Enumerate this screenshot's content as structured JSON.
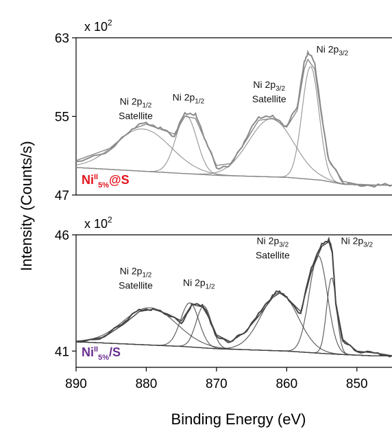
{
  "chart_data": [
    {
      "type": "line",
      "panel": "top",
      "ylabel": "Intensity (Counts/s)",
      "xlabel": "Binding Energy (eV)",
      "multiplier": "x 10",
      "multiplier_exp": "2",
      "xlim": [
        890,
        845
      ],
      "ylim": [
        47,
        63
      ],
      "yticks": [
        47,
        55,
        63
      ],
      "xticks": [],
      "sample_label": {
        "main": "Ni",
        "sup": "II",
        "sub": "5%",
        "tail": "@S",
        "color": "#e2141e"
      },
      "line_color": "#8a8a8a",
      "annotations": [
        {
          "lines": [
            "Ni 2p1/2",
            "Satellite"
          ],
          "x": 881.5,
          "y": 56.2
        },
        {
          "lines": [
            "Ni 2p1/2"
          ],
          "x": 874.0,
          "y": 56.6
        },
        {
          "lines": [
            "Ni 2p3/2",
            "Satellite"
          ],
          "x": 862.5,
          "y": 57.9
        },
        {
          "lines": [
            "Ni 2p3/2"
          ],
          "x": 853.5,
          "y": 61.5
        }
      ],
      "series": [
        {
          "role": "measured",
          "x": [
            890,
            885,
            882,
            880,
            878,
            876,
            874.5,
            873,
            871.5,
            870,
            868,
            866,
            864,
            862,
            860,
            858.5,
            857.5,
            857,
            856,
            855,
            854,
            852,
            850,
            847,
            845
          ],
          "y": [
            50.4,
            51.6,
            53.8,
            54.4,
            53.8,
            53.0,
            55.4,
            55.2,
            52.5,
            49.8,
            50.0,
            52.5,
            55.0,
            55.0,
            54.0,
            56.0,
            60.5,
            61.5,
            60.5,
            55.0,
            50.5,
            48.3,
            48.0,
            48.0,
            48.0
          ]
        },
        {
          "role": "fit",
          "x": [
            890,
            885,
            882,
            880,
            878,
            876,
            874.5,
            873,
            871.5,
            870,
            868,
            866,
            864,
            862,
            860,
            858.5,
            857.5,
            857,
            856,
            855,
            854,
            852,
            850,
            847,
            845
          ],
          "y": [
            50.5,
            51.8,
            53.7,
            54.2,
            53.7,
            53.2,
            55.0,
            54.8,
            52.4,
            50.0,
            50.2,
            52.3,
            54.6,
            54.8,
            53.9,
            55.6,
            59.8,
            60.8,
            59.8,
            54.8,
            50.6,
            48.4,
            48.1,
            48.0,
            48.0
          ]
        },
        {
          "role": "background",
          "x": [
            890,
            875,
            870,
            860,
            855,
            852,
            848,
            845
          ],
          "y": [
            49.8,
            49.2,
            49.0,
            48.8,
            48.5,
            48.1,
            48.0,
            48.0
          ]
        },
        {
          "role": "component",
          "name": "Ni 2p1/2 satellite",
          "center": 880.5,
          "height": 4.3,
          "width": 4.0
        },
        {
          "role": "component",
          "name": "Ni 2p1/2",
          "center": 874.3,
          "height": 5.9,
          "width": 1.5
        },
        {
          "role": "component",
          "name": "Ni 2p3/2 satellite",
          "center": 862.2,
          "height": 5.9,
          "width": 3.2
        },
        {
          "role": "component",
          "name": "Ni 2p3/2",
          "center": 856.6,
          "height": 11.5,
          "width": 1.2
        }
      ]
    },
    {
      "type": "line",
      "panel": "bottom",
      "ylabel": "Intensity (Counts/s)",
      "xlabel": "Binding Energy (eV)",
      "multiplier": "x 10",
      "multiplier_exp": "2",
      "xlim": [
        890,
        845
      ],
      "ylim": [
        40.3,
        46
      ],
      "yticks": [
        41,
        46
      ],
      "xticks": [
        890,
        880,
        870,
        860,
        850
      ],
      "sample_label": {
        "main": "Ni",
        "sup": "II",
        "sub": "5%",
        "tail": "/S",
        "color": "#6a2f8f"
      },
      "line_color": "#444444",
      "annotations": [
        {
          "lines": [
            "Ni 2p1/2",
            "Satellite"
          ],
          "x": 881.5,
          "y": 44.3
        },
        {
          "lines": [
            "Ni 2p1/2"
          ],
          "x": 872.5,
          "y": 43.8
        },
        {
          "lines": [
            "Ni 2p3/2",
            "Satellite"
          ],
          "x": 862.0,
          "y": 45.6
        },
        {
          "lines": [
            "Ni 2p3/2"
          ],
          "x": 850.0,
          "y": 45.6
        }
      ],
      "series": [
        {
          "role": "measured",
          "x": [
            890,
            886,
            883,
            881,
            879,
            877,
            875,
            873.5,
            872,
            871,
            870,
            868,
            866,
            864,
            862,
            861,
            860,
            858,
            856.5,
            855,
            854,
            853.5,
            853,
            852,
            850,
            847,
            845
          ],
          "y": [
            41.4,
            41.6,
            42.3,
            42.8,
            42.8,
            42.6,
            42.2,
            43.0,
            43.0,
            42.4,
            41.6,
            41.4,
            41.8,
            42.6,
            43.4,
            43.6,
            43.3,
            42.6,
            44.6,
            45.6,
            45.8,
            45.3,
            43.0,
            41.4,
            41.0,
            40.9,
            40.8
          ]
        },
        {
          "role": "fit",
          "x": [
            890,
            886,
            883,
            881,
            879,
            877,
            875,
            873.5,
            872,
            871,
            870,
            868,
            866,
            864,
            862,
            861,
            860,
            858,
            856.5,
            855,
            854,
            853.5,
            853,
            852,
            850,
            847,
            845
          ],
          "y": [
            41.4,
            41.6,
            42.2,
            42.7,
            42.8,
            42.6,
            42.3,
            43.0,
            42.9,
            42.4,
            41.7,
            41.4,
            41.8,
            42.5,
            43.3,
            43.5,
            43.3,
            42.7,
            44.4,
            45.5,
            45.7,
            45.2,
            43.1,
            41.5,
            41.0,
            40.9,
            40.8
          ]
        },
        {
          "role": "background",
          "x": [
            890,
            875,
            870,
            860,
            855,
            852,
            848,
            845
          ],
          "y": [
            41.4,
            41.2,
            41.1,
            41.0,
            40.9,
            40.85,
            40.8,
            40.8
          ]
        },
        {
          "role": "component",
          "name": "Ni 2p1/2 satellite",
          "center": 879.5,
          "height": 1.6,
          "width": 3.8
        },
        {
          "role": "component",
          "name": "Ni 2p1/2 a",
          "center": 873.8,
          "height": 1.9,
          "width": 1.3
        },
        {
          "role": "component",
          "name": "Ni 2p1/2 b",
          "center": 871.8,
          "height": 1.8,
          "width": 1.1
        },
        {
          "role": "component",
          "name": "Ni 2p3/2 satellite",
          "center": 861.0,
          "height": 2.5,
          "width": 2.6
        },
        {
          "role": "component",
          "name": "Ni 2p3/2 a",
          "center": 855.5,
          "height": 4.2,
          "width": 1.3
        },
        {
          "role": "component",
          "name": "Ni 2p3/2 b",
          "center": 853.6,
          "height": 3.3,
          "width": 0.7
        }
      ]
    }
  ]
}
